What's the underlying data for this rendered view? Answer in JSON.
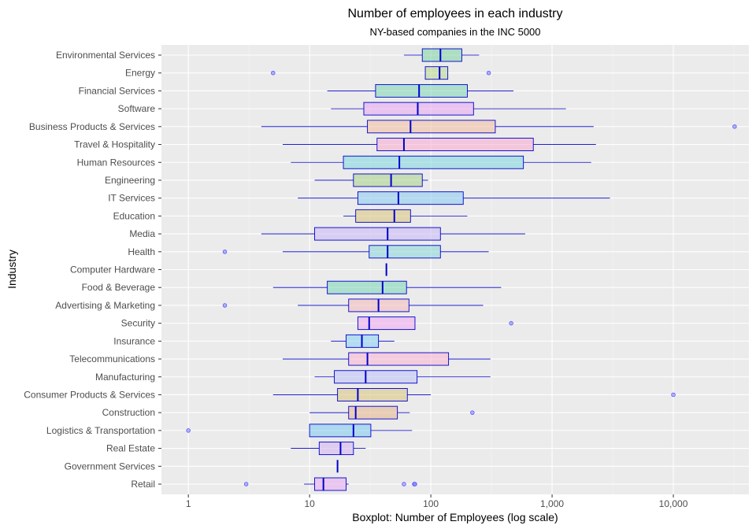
{
  "chart_data": {
    "type": "boxplot",
    "title": "Number of employees in each industry",
    "subtitle": "NY-based companies in the INC 5000",
    "xlabel": "Boxplot: Number of Employees (log scale)",
    "ylabel": "Industry",
    "x_scale": "log10",
    "xlim": [
      0.6,
      42000
    ],
    "x_ticks": [
      {
        "value": 1,
        "label": "1"
      },
      {
        "value": 10,
        "label": "10"
      },
      {
        "value": 100,
        "label": "100"
      },
      {
        "value": 1000,
        "label": "1,000"
      },
      {
        "value": 10000,
        "label": "10,000"
      }
    ],
    "grid": true,
    "categories": [
      {
        "name": "Environmental Services",
        "lo": 60,
        "q1": 85,
        "median": 120,
        "q3": 180,
        "hi": 250,
        "outliers": [],
        "color": "#7ad1a0"
      },
      {
        "name": "Energy",
        "lo": 90,
        "q1": 90,
        "median": 118,
        "q3": 138,
        "hi": 138,
        "outliers": [
          5,
          300
        ],
        "color": "#b6d88a"
      },
      {
        "name": "Financial Services",
        "lo": 14,
        "q1": 35,
        "median": 80,
        "q3": 200,
        "hi": 480,
        "outliers": [],
        "color": "#7ad6b2"
      },
      {
        "name": "Software",
        "lo": 15,
        "q1": 28,
        "median": 78,
        "q3": 225,
        "hi": 1300,
        "outliers": [],
        "color": "#e6a4f0"
      },
      {
        "name": "Business Products & Services",
        "lo": 4,
        "q1": 30,
        "median": 68,
        "q3": 340,
        "hi": 2200,
        "outliers": [
          32000
        ],
        "color": "#f2bca0"
      },
      {
        "name": "Travel & Hospitality",
        "lo": 6,
        "q1": 36,
        "median": 60,
        "q3": 700,
        "hi": 2300,
        "outliers": [],
        "color": "#f7aacd"
      },
      {
        "name": "Human Resources",
        "lo": 7,
        "q1": 19,
        "median": 55,
        "q3": 580,
        "hi": 2100,
        "outliers": [],
        "color": "#7ad6e0"
      },
      {
        "name": "Engineering",
        "lo": 11,
        "q1": 23,
        "median": 47,
        "q3": 85,
        "hi": 95,
        "outliers": [],
        "color": "#a8cf86"
      },
      {
        "name": "IT Services",
        "lo": 8,
        "q1": 25,
        "median": 54,
        "q3": 185,
        "hi": 3000,
        "outliers": [],
        "color": "#86c8f0"
      },
      {
        "name": "Education",
        "lo": 19,
        "q1": 24,
        "median": 50,
        "q3": 68,
        "hi": 200,
        "outliers": [],
        "color": "#d9c27a"
      },
      {
        "name": "Media",
        "lo": 4,
        "q1": 11,
        "median": 44,
        "q3": 120,
        "hi": 600,
        "outliers": [],
        "color": "#c6b6f5"
      },
      {
        "name": "Health",
        "lo": 6,
        "q1": 31,
        "median": 44,
        "q3": 120,
        "hi": 300,
        "outliers": [
          2
        ],
        "color": "#86d6d8"
      },
      {
        "name": "Computer Hardware",
        "lo": 43,
        "q1": 43,
        "median": 43,
        "q3": 43,
        "hi": 43,
        "outliers": [],
        "color": "#c8c8c8"
      },
      {
        "name": "Food & Beverage",
        "lo": 5,
        "q1": 14,
        "median": 40,
        "q3": 63,
        "hi": 380,
        "outliers": [],
        "color": "#7ad6b6"
      },
      {
        "name": "Advertising & Marketing",
        "lo": 8,
        "q1": 21,
        "median": 37,
        "q3": 66,
        "hi": 270,
        "outliers": [
          2
        ],
        "color": "#f3b8b8"
      },
      {
        "name": "Security",
        "lo": 25,
        "q1": 25,
        "median": 31,
        "q3": 74,
        "hi": 74,
        "outliers": [
          460
        ],
        "color": "#f0a8f0"
      },
      {
        "name": "Insurance",
        "lo": 15,
        "q1": 20,
        "median": 27,
        "q3": 37,
        "hi": 50,
        "outliers": [],
        "color": "#86d0f5"
      },
      {
        "name": "Telecommunications",
        "lo": 6,
        "q1": 21,
        "median": 30,
        "q3": 140,
        "hi": 310,
        "outliers": [],
        "color": "#f7b2d2"
      },
      {
        "name": "Manufacturing",
        "lo": 11,
        "q1": 16,
        "median": 29,
        "q3": 77,
        "hi": 310,
        "outliers": [],
        "color": "#b9c0f5"
      },
      {
        "name": "Consumer Products & Services",
        "lo": 5,
        "q1": 17,
        "median": 25,
        "q3": 64,
        "hi": 100,
        "outliers": [
          10000
        ],
        "color": "#d8c27a"
      },
      {
        "name": "Construction",
        "lo": 10,
        "q1": 21,
        "median": 24,
        "q3": 53,
        "hi": 67,
        "outliers": [
          220
        ],
        "color": "#e6b48a"
      },
      {
        "name": "Logistics & Transportation",
        "lo": 10,
        "q1": 10,
        "median": 23,
        "q3": 32,
        "hi": 70,
        "outliers": [
          1
        ],
        "color": "#7ac8f0"
      },
      {
        "name": "Real Estate",
        "lo": 7,
        "q1": 12,
        "median": 18,
        "q3": 23,
        "hi": 29,
        "outliers": [],
        "color": "#d2b2f2"
      },
      {
        "name": "Government Services",
        "lo": 17,
        "q1": 17,
        "median": 17,
        "q3": 17,
        "hi": 17,
        "outliers": [],
        "color": "#c8c8c8"
      },
      {
        "name": "Retail",
        "lo": 9,
        "q1": 11,
        "median": 13,
        "q3": 20,
        "hi": 21,
        "outliers": [
          3,
          60,
          73,
          74
        ],
        "color": "#e6a8f2"
      }
    ]
  }
}
